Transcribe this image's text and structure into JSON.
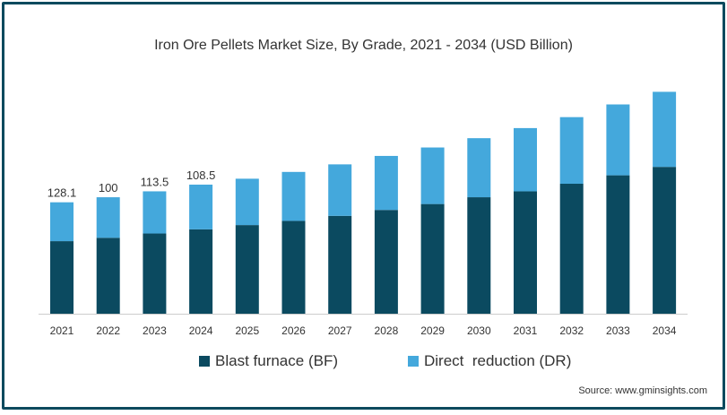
{
  "chart_data": {
    "type": "bar",
    "stacked": true,
    "title": "Iron Ore Pellets Market Size, By Grade, 2021 - 2034 (USD Billion)",
    "categories": [
      "2021",
      "2022",
      "2023",
      "2024",
      "2025",
      "2026",
      "2027",
      "2028",
      "2029",
      "2030",
      "2031",
      "2032",
      "2033",
      "2034"
    ],
    "series": [
      {
        "name": "Blast furnace (BF)",
        "color": "#0b4a60",
        "values": [
          83.4,
          87.3,
          92.2,
          97,
          101.9,
          106.7,
          112.5,
          119.3,
          126.1,
          133.9,
          140.7,
          149.4,
          159.1,
          168.8
        ]
      },
      {
        "name": "Direct  reduction (DR)",
        "color": "#44a8dc",
        "values": [
          44.7,
          46.6,
          48.5,
          51.4,
          53.3,
          56.3,
          59.2,
          62.1,
          65,
          67.9,
          72.7,
          76.6,
          81.5,
          86.3
        ]
      }
    ],
    "data_labels": [
      "128.1",
      "100",
      "113.5",
      "108.5"
    ],
    "ylim": [
      0,
      260
    ],
    "xlabel": "",
    "ylabel": "",
    "grid": false,
    "legend_position": "bottom"
  },
  "source": "Source: www.gminsights.com"
}
